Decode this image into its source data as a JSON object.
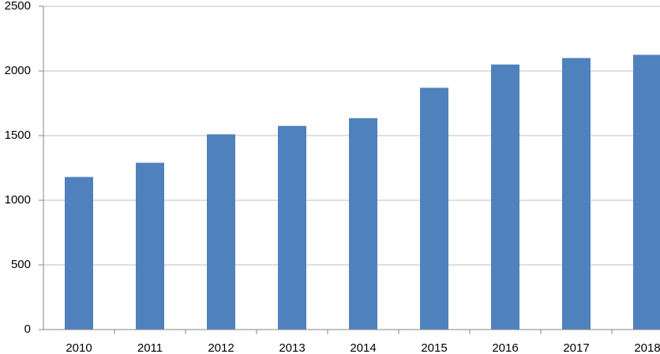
{
  "chart_data": {
    "type": "bar",
    "categories": [
      "2010",
      "2011",
      "2012",
      "2013",
      "2014",
      "2015",
      "2016",
      "2017",
      "2018"
    ],
    "values": [
      1180,
      1290,
      1510,
      1575,
      1635,
      1870,
      2050,
      2100,
      2125
    ],
    "color": "#4f81bd",
    "ylim": [
      0,
      2500
    ],
    "yticks": [
      0,
      500,
      1000,
      1500,
      2000,
      2500
    ],
    "grid": true
  }
}
